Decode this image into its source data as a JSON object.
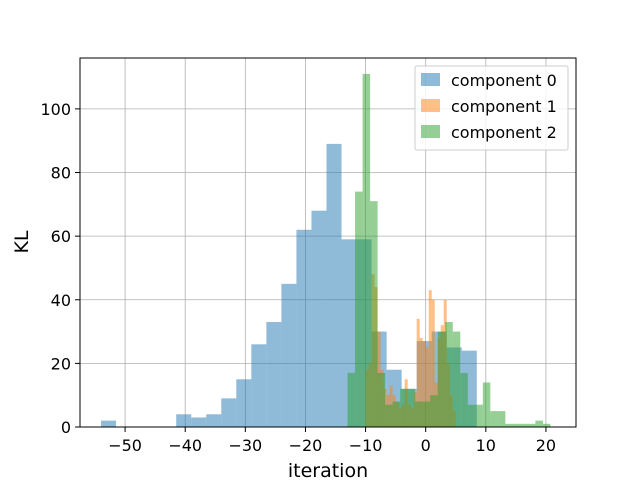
{
  "chart_data": {
    "type": "histogram",
    "xlabel": "iteration",
    "ylabel": "KL",
    "xlim": [
      -57.5,
      25.0
    ],
    "ylim": [
      0,
      116
    ],
    "xticks": [
      -50,
      -40,
      -30,
      -20,
      -10,
      0,
      10,
      20
    ],
    "yticks": [
      0,
      20,
      40,
      60,
      80,
      100
    ],
    "grid": true,
    "legend_position": "top-right",
    "series": [
      {
        "name": "component 0",
        "color": "#1f77b4",
        "opacity": 0.5,
        "bins": [
          [
            -54.0,
            -51.5,
            2
          ],
          [
            -51.5,
            -49.0,
            0
          ],
          [
            -49.0,
            -46.5,
            0
          ],
          [
            -46.5,
            -44.0,
            0
          ],
          [
            -44.0,
            -41.5,
            0
          ],
          [
            -41.5,
            -39.0,
            4
          ],
          [
            -39.0,
            -36.5,
            3
          ],
          [
            -36.5,
            -34.0,
            4
          ],
          [
            -34.0,
            -31.5,
            9
          ],
          [
            -31.5,
            -29.0,
            15
          ],
          [
            -29.0,
            -26.5,
            26
          ],
          [
            -26.5,
            -24.0,
            33
          ],
          [
            -24.0,
            -21.5,
            45
          ],
          [
            -21.5,
            -19.0,
            62
          ],
          [
            -19.0,
            -16.5,
            68
          ],
          [
            -16.5,
            -14.0,
            89
          ],
          [
            -14.0,
            -11.5,
            59
          ],
          [
            -11.5,
            -9.0,
            59
          ],
          [
            -9.0,
            -6.5,
            30
          ],
          [
            -6.5,
            -4.0,
            18
          ],
          [
            -4.0,
            -1.5,
            12
          ],
          [
            -1.5,
            1.0,
            27
          ],
          [
            1.0,
            3.5,
            30
          ],
          [
            3.5,
            6.0,
            25
          ],
          [
            6.0,
            8.5,
            24
          ]
        ]
      },
      {
        "name": "component 1",
        "color": "#ff7f0e",
        "opacity": 0.5,
        "bins": [
          [
            -10.0,
            -9.5,
            18
          ],
          [
            -9.5,
            -9.0,
            20
          ],
          [
            -9.0,
            -8.5,
            48
          ],
          [
            -8.5,
            -8.0,
            44
          ],
          [
            -8.0,
            -7.5,
            30
          ],
          [
            -7.5,
            -7.0,
            18
          ],
          [
            -7.0,
            -6.5,
            12
          ],
          [
            -6.5,
            -6.0,
            10
          ],
          [
            -6.0,
            -5.5,
            13
          ],
          [
            -5.5,
            -5.0,
            10
          ],
          [
            -5.0,
            -4.5,
            8
          ],
          [
            -4.5,
            -4.0,
            6
          ],
          [
            -4.0,
            -3.5,
            7
          ],
          [
            -3.5,
            -3.0,
            15
          ],
          [
            -3.0,
            -2.5,
            7
          ],
          [
            -2.5,
            -2.0,
            6
          ],
          [
            -2.0,
            -1.5,
            11
          ],
          [
            -1.5,
            -1.0,
            34
          ],
          [
            -1.0,
            -0.5,
            28
          ],
          [
            -0.5,
            0.0,
            27
          ],
          [
            0.0,
            0.5,
            25
          ],
          [
            0.5,
            1.0,
            43
          ],
          [
            1.0,
            1.5,
            40
          ],
          [
            1.5,
            2.0,
            14
          ],
          [
            2.0,
            2.5,
            28
          ],
          [
            2.5,
            3.0,
            32
          ],
          [
            3.0,
            3.5,
            40
          ],
          [
            3.5,
            4.0,
            20
          ],
          [
            4.0,
            4.5,
            10
          ],
          [
            4.5,
            5.0,
            5
          ]
        ]
      },
      {
        "name": "component 2",
        "color": "#2ca02c",
        "opacity": 0.5,
        "bins": [
          [
            -13.0,
            -11.75,
            17
          ],
          [
            -11.75,
            -10.5,
            74
          ],
          [
            -10.5,
            -9.25,
            111
          ],
          [
            -9.25,
            -8.0,
            71
          ],
          [
            -8.0,
            -6.75,
            17
          ],
          [
            -6.75,
            -5.5,
            7
          ],
          [
            -5.5,
            -4.25,
            8
          ],
          [
            -4.25,
            -3.0,
            12
          ],
          [
            -3.0,
            -1.75,
            12
          ],
          [
            -1.75,
            -0.5,
            8
          ],
          [
            -0.5,
            0.75,
            8
          ],
          [
            0.75,
            2.0,
            10
          ],
          [
            2.0,
            3.25,
            30
          ],
          [
            3.25,
            4.5,
            33
          ],
          [
            4.5,
            5.75,
            30
          ],
          [
            5.75,
            7.0,
            17
          ],
          [
            7.0,
            8.25,
            7
          ],
          [
            8.25,
            9.5,
            7
          ],
          [
            9.5,
            10.75,
            14
          ],
          [
            10.75,
            12.0,
            5
          ],
          [
            12.0,
            13.25,
            5
          ],
          [
            13.25,
            14.5,
            1
          ],
          [
            14.5,
            15.75,
            1
          ],
          [
            15.75,
            17.0,
            1
          ],
          [
            17.0,
            18.25,
            1
          ],
          [
            18.25,
            19.5,
            2
          ],
          [
            19.5,
            20.75,
            1
          ]
        ]
      }
    ]
  }
}
